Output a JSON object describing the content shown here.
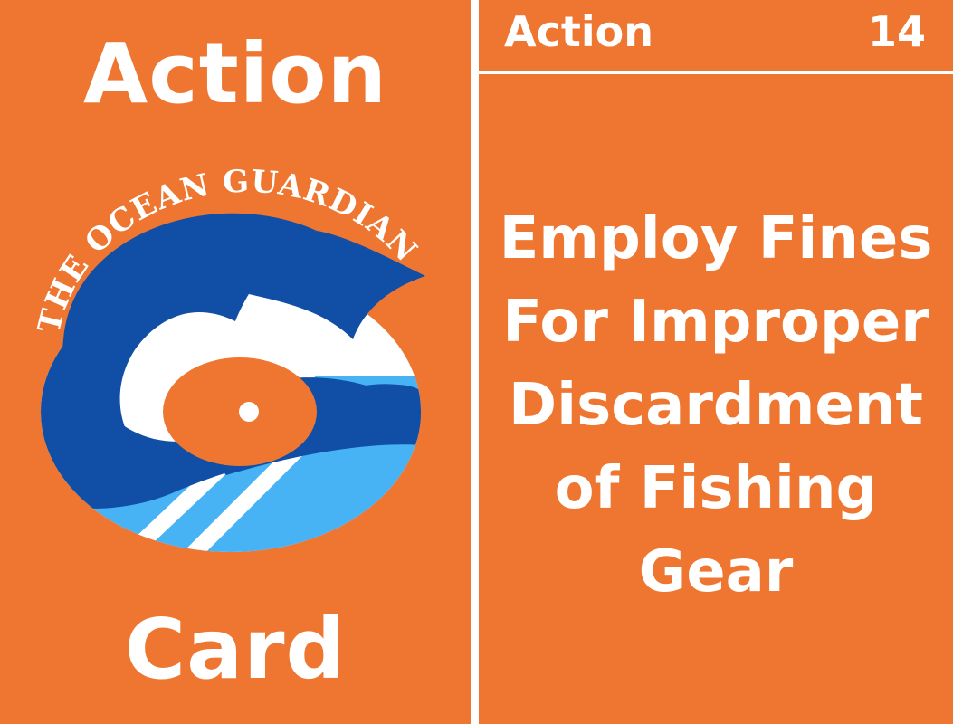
{
  "front": {
    "title": "Action",
    "subtitle": "Card",
    "logo": {
      "arc_text": "THE OCEAN GUARDIAN",
      "icon": "whale-logo",
      "colors": {
        "body": "#114fa6",
        "stripes_light": "#47b3f5",
        "stripes_white": "#ffffff",
        "background": "#ee7630"
      }
    }
  },
  "back": {
    "header_title": "Action",
    "card_number": "14",
    "body_text": "Employ Fines For Improper Discardment of Fishing Gear"
  },
  "colors": {
    "card_background": "#ee7630",
    "text": "#ffffff",
    "separator": "#ffffff"
  }
}
